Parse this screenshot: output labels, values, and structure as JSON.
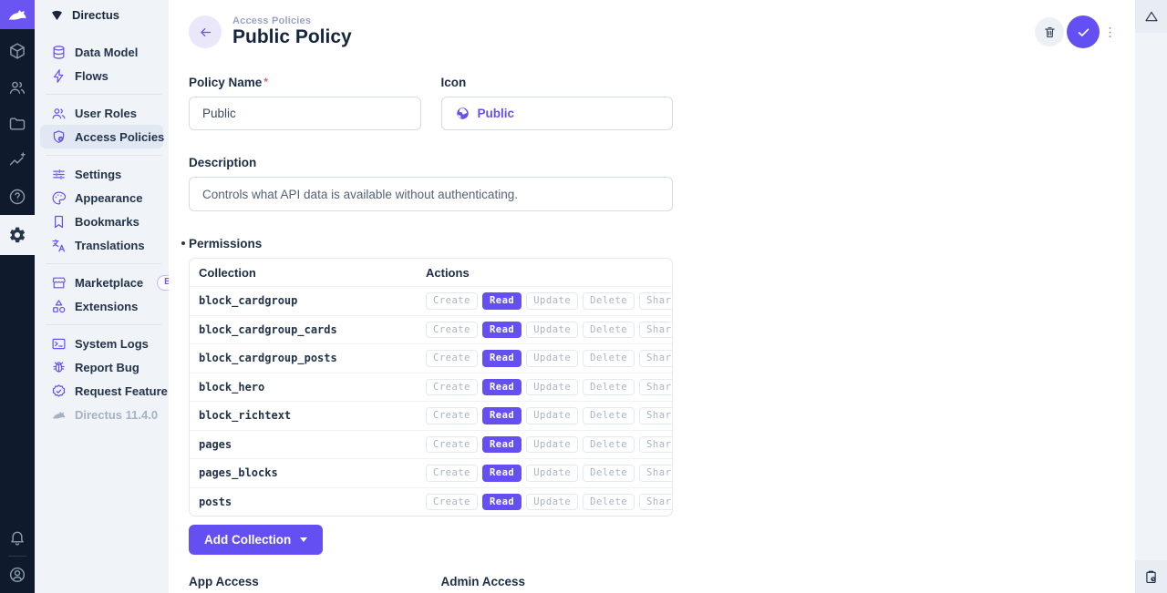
{
  "colors": {
    "accent": "#6450f2",
    "module_bar_bg": "#0f1b2c",
    "sidebar_bg": "#f0f4f9",
    "text_dark": "#15263c"
  },
  "module_bar": {
    "logo_icon": "directus-rabbit-icon",
    "items": [
      {
        "name": "content-module",
        "icon": "box-icon",
        "active": false
      },
      {
        "name": "users-module",
        "icon": "users-icon",
        "active": false
      },
      {
        "name": "files-module",
        "icon": "folder-icon",
        "active": false
      },
      {
        "name": "insights-module",
        "icon": "chart-icon",
        "active": false
      },
      {
        "name": "docs-module",
        "icon": "help-icon",
        "active": false
      },
      {
        "name": "settings-module",
        "icon": "gear-icon",
        "active": true
      }
    ],
    "bottom": [
      {
        "name": "notifications-button",
        "icon": "bell-icon"
      },
      {
        "name": "account-button",
        "icon": "user-circle-icon"
      }
    ]
  },
  "nav": {
    "project_name": "Directus",
    "sections": [
      {
        "items": [
          {
            "icon": "database-icon",
            "label": "Data Model"
          },
          {
            "icon": "bolt-icon",
            "label": "Flows"
          }
        ]
      },
      {
        "items": [
          {
            "icon": "user-roles-icon",
            "label": "User Roles"
          },
          {
            "icon": "shield-badge-icon",
            "label": "Access Policies",
            "active": true
          }
        ]
      },
      {
        "items": [
          {
            "icon": "sliders-icon",
            "label": "Settings"
          },
          {
            "icon": "palette-icon",
            "label": "Appearance"
          },
          {
            "icon": "bookmark-icon",
            "label": "Bookmarks"
          },
          {
            "icon": "translate-icon",
            "label": "Translations"
          }
        ]
      },
      {
        "items": [
          {
            "icon": "storefront-icon",
            "label": "Marketplace",
            "badge": "Beta"
          },
          {
            "icon": "category-icon",
            "label": "Extensions"
          }
        ]
      },
      {
        "items": [
          {
            "icon": "terminal-icon",
            "label": "System Logs"
          },
          {
            "icon": "bug-icon",
            "label": "Report Bug"
          },
          {
            "icon": "verified-icon",
            "label": "Request Feature"
          },
          {
            "icon": "rabbit-icon",
            "label": "Directus 11.4.0",
            "muted": true
          }
        ]
      }
    ]
  },
  "header": {
    "breadcrumb": "Access Policies",
    "title": "Public Policy"
  },
  "form": {
    "policy_name": {
      "label": "Policy Name",
      "required_marker": "*",
      "value": "Public"
    },
    "icon_field": {
      "label": "Icon",
      "value": "Public",
      "icon": "globe-icon"
    },
    "description": {
      "label": "Description",
      "value": "Controls what API data is available without authenticating."
    }
  },
  "permissions": {
    "label": "Permissions",
    "columns": [
      "Collection",
      "Actions"
    ],
    "actions": [
      "Create",
      "Read",
      "Update",
      "Delete",
      "Share"
    ],
    "active_action": "Read",
    "rows": [
      "block_cardgroup",
      "block_cardgroup_cards",
      "block_cardgroup_posts",
      "block_hero",
      "block_richtext",
      "pages",
      "pages_blocks",
      "posts"
    ]
  },
  "add_collection": {
    "label": "Add Collection"
  },
  "footer_fields": [
    {
      "label": "App Access"
    },
    {
      "label": "Admin Access"
    }
  ]
}
